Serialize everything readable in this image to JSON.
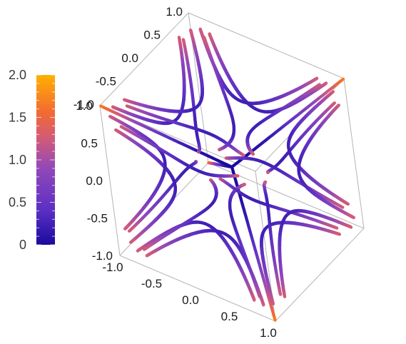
{
  "chart_data": {
    "type": "stream-plot-3d",
    "title": "",
    "axes": {
      "x": {
        "range": [
          -1.0,
          1.0
        ],
        "ticks": [
          "-1.0",
          "-0.5",
          "0.0",
          "0.5",
          "1.0"
        ]
      },
      "y": {
        "range": [
          -1.0,
          1.0
        ],
        "ticks": [
          "-1.0",
          "-0.5",
          "0.0",
          "0.5",
          "1.0"
        ]
      },
      "z": {
        "range": [
          -1.0,
          1.0
        ],
        "ticks": [
          "-1.0",
          "-0.5",
          "0.0",
          "0.5",
          "1.0"
        ]
      }
    },
    "colorbar": {
      "range": [
        0,
        2.0
      ],
      "ticks": [
        "0",
        "0.5",
        "1.0",
        "1.5",
        "2.0"
      ],
      "colors": [
        "#1a0a9e",
        "#5b2fc4",
        "#9248b8",
        "#d05a7c",
        "#f26a32",
        "#ffb000"
      ],
      "placement": "left"
    },
    "box_edge_color": "#b4b4b4",
    "grid": false,
    "streamlines_note_values": "magnitude |v| along each streamline shown by color"
  }
}
